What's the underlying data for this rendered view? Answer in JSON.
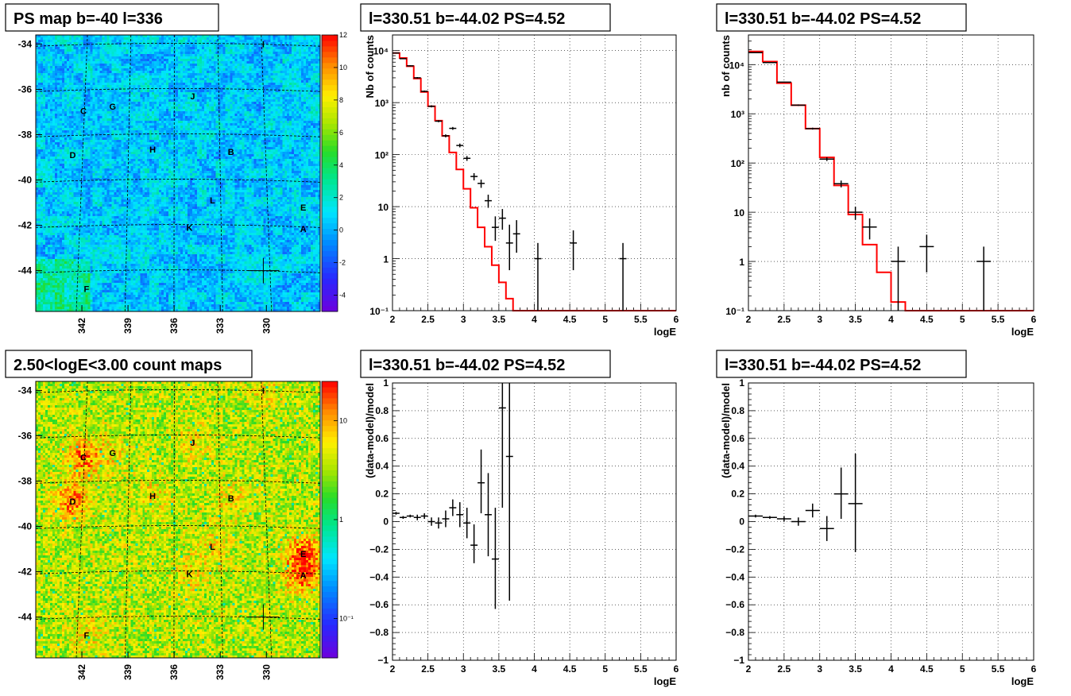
{
  "chart_data": [
    {
      "id": "ps_map",
      "type": "heatmap",
      "title": "PS map b=-40 l=336",
      "xticks": [
        "342",
        "339",
        "336",
        "333",
        "330"
      ],
      "yticks": [
        "-34",
        "-36",
        "-38",
        "-40",
        "-42",
        "-44"
      ],
      "xlim": [
        345,
        326.5
      ],
      "ylim": [
        -45.8,
        -33.6
      ],
      "palette_ticks": [
        "12",
        "10",
        "8",
        "6",
        "4",
        "2",
        "0",
        "-2",
        "-4"
      ],
      "zlim": [
        -5,
        12
      ],
      "sources": [
        {
          "name": "C",
          "l": 341.9,
          "b": -36.95
        },
        {
          "name": "G",
          "l": 340.0,
          "b": -36.75
        },
        {
          "name": "J",
          "l": 334.8,
          "b": -36.3
        },
        {
          "name": "D",
          "l": 342.6,
          "b": -38.9
        },
        {
          "name": "H",
          "l": 337.4,
          "b": -38.65
        },
        {
          "name": "B",
          "l": 332.3,
          "b": -38.75
        },
        {
          "name": "L",
          "l": 333.5,
          "b": -40.9
        },
        {
          "name": "E",
          "l": 327.6,
          "b": -41.2
        },
        {
          "name": "K",
          "l": 335.0,
          "b": -42.1
        },
        {
          "name": "A",
          "l": 327.6,
          "b": -42.15
        },
        {
          "name": "F",
          "l": 341.7,
          "b": -44.8
        },
        {
          "name": "I",
          "l": 330.2,
          "b": -34.0
        }
      ],
      "marker": {
        "l": 330.2,
        "b": -44.0
      }
    },
    {
      "id": "count_map",
      "type": "heatmap",
      "title": "2.50<logE<3.00 count maps",
      "xticks": [
        "342",
        "339",
        "336",
        "333",
        "330"
      ],
      "yticks": [
        "-34",
        "-36",
        "-38",
        "-40",
        "-42",
        "-44"
      ],
      "xlim": [
        345,
        326.5
      ],
      "ylim": [
        -45.8,
        -33.6
      ],
      "palette_ticks": [
        "10",
        "1",
        "10⁻¹"
      ],
      "palette_tick_values": [
        10,
        1,
        0.1
      ],
      "zlim": [
        0.04,
        25
      ],
      "zscale": "log",
      "sources": [
        {
          "name": "C",
          "l": 341.9,
          "b": -36.95
        },
        {
          "name": "G",
          "l": 340.0,
          "b": -36.75
        },
        {
          "name": "J",
          "l": 334.8,
          "b": -36.3
        },
        {
          "name": "D",
          "l": 342.6,
          "b": -38.9
        },
        {
          "name": "H",
          "l": 337.4,
          "b": -38.65
        },
        {
          "name": "B",
          "l": 332.3,
          "b": -38.75
        },
        {
          "name": "L",
          "l": 333.5,
          "b": -40.9
        },
        {
          "name": "E",
          "l": 327.6,
          "b": -41.2
        },
        {
          "name": "K",
          "l": 335.0,
          "b": -42.1
        },
        {
          "name": "A",
          "l": 327.6,
          "b": -42.15
        },
        {
          "name": "F",
          "l": 341.7,
          "b": -44.8
        },
        {
          "name": "I",
          "l": 330.2,
          "b": -34.0
        }
      ],
      "marker": {
        "l": 330.2,
        "b": -44.0
      }
    },
    {
      "id": "spectrum_1",
      "type": "line",
      "title": "l=330.51 b=-44.02 PS=4.52",
      "xlabel": "logE",
      "ylabel": "Nb of counts",
      "xlim": [
        2,
        6
      ],
      "ylim": [
        0.1,
        20000
      ],
      "yscale": "log",
      "xticks": [
        "2",
        "2.5",
        "3",
        "3.5",
        "4",
        "4.5",
        "5",
        "5.5",
        "6"
      ],
      "yticks": [
        {
          "v": 0.1,
          "label": "10⁻¹"
        },
        {
          "v": 1,
          "label": "1"
        },
        {
          "v": 10,
          "label": "10"
        },
        {
          "v": 100,
          "label": "10²"
        },
        {
          "v": 1000,
          "label": "10³"
        },
        {
          "v": 10000,
          "label": "10⁴"
        }
      ],
      "model": {
        "edges": [
          2.0,
          2.1,
          2.2,
          2.3,
          2.4,
          2.5,
          2.6,
          2.7,
          2.8,
          2.9,
          3.0,
          3.1,
          3.2,
          3.3,
          3.4,
          3.5,
          3.6,
          3.7,
          3.8,
          3.9,
          4.0,
          4.1,
          4.2,
          6.0
        ],
        "values": [
          9000,
          7200,
          5000,
          2900,
          1600,
          850,
          450,
          230,
          110,
          52,
          22,
          9.5,
          4.0,
          1.7,
          0.75,
          0.35,
          0.17,
          0.09,
          0.045,
          0.02,
          0.009,
          0.004,
          0.002
        ]
      },
      "points": [
        {
          "x": 2.05,
          "y": 9000,
          "ylo": 8800,
          "yhi": 9200,
          "xerr": 0.05
        },
        {
          "x": 2.15,
          "y": 7000,
          "ylo": 6850,
          "yhi": 7150,
          "xerr": 0.05
        },
        {
          "x": 2.25,
          "y": 5100,
          "ylo": 4980,
          "yhi": 5220,
          "xerr": 0.05
        },
        {
          "x": 2.35,
          "y": 3000,
          "ylo": 2900,
          "yhi": 3100,
          "xerr": 0.05
        },
        {
          "x": 2.45,
          "y": 1650,
          "ylo": 1590,
          "yhi": 1710,
          "xerr": 0.05
        },
        {
          "x": 2.55,
          "y": 850,
          "ylo": 810,
          "yhi": 890,
          "xerr": 0.05
        },
        {
          "x": 2.65,
          "y": 440,
          "ylo": 420,
          "yhi": 460,
          "xerr": 0.05
        },
        {
          "x": 2.75,
          "y": 230,
          "ylo": 215,
          "yhi": 245,
          "xerr": 0.05
        },
        {
          "x": 2.85,
          "y": 320,
          "ylo": 300,
          "yhi": 340,
          "xerr": 0.05
        },
        {
          "x": 2.95,
          "y": 150,
          "ylo": 138,
          "yhi": 163,
          "xerr": 0.05
        },
        {
          "x": 3.05,
          "y": 85,
          "ylo": 76,
          "yhi": 94,
          "xerr": 0.05
        },
        {
          "x": 3.15,
          "y": 38,
          "ylo": 32,
          "yhi": 44,
          "xerr": 0.05
        },
        {
          "x": 3.25,
          "y": 28,
          "ylo": 23,
          "yhi": 33,
          "xerr": 0.05
        },
        {
          "x": 3.35,
          "y": 13,
          "ylo": 9.5,
          "yhi": 17,
          "xerr": 0.05
        },
        {
          "x": 3.45,
          "y": 4,
          "ylo": 2.2,
          "yhi": 6.5,
          "xerr": 0.05
        },
        {
          "x": 3.55,
          "y": 6,
          "ylo": 3.6,
          "yhi": 9,
          "xerr": 0.05
        },
        {
          "x": 3.65,
          "y": 2,
          "ylo": 0.6,
          "yhi": 4.5,
          "xerr": 0.05
        },
        {
          "x": 3.75,
          "y": 3,
          "ylo": 1.3,
          "yhi": 5.5,
          "xerr": 0.05
        },
        {
          "x": 4.05,
          "y": 1,
          "ylo": 0.1,
          "yhi": 2.0,
          "xerr": 0.05
        },
        {
          "x": 4.55,
          "y": 2,
          "ylo": 0.6,
          "yhi": 3.5,
          "xerr": 0.05
        },
        {
          "x": 5.25,
          "y": 1,
          "ylo": 0.1,
          "yhi": 2.0,
          "xerr": 0.05
        }
      ]
    },
    {
      "id": "spectrum_2",
      "type": "line",
      "title": "l=330.51 b=-44.02 PS=4.52",
      "xlabel": "logE",
      "ylabel": "nb of counts",
      "xlim": [
        2,
        6
      ],
      "ylim": [
        0.1,
        40000
      ],
      "yscale": "log",
      "xticks": [
        "2",
        "2.5",
        "3",
        "3.5",
        "4",
        "4.5",
        "5",
        "5.5",
        "6"
      ],
      "yticks": [
        {
          "v": 0.1,
          "label": "10⁻¹"
        },
        {
          "v": 1,
          "label": "1"
        },
        {
          "v": 10,
          "label": "10"
        },
        {
          "v": 100,
          "label": "10²"
        },
        {
          "v": 1000,
          "label": "10³"
        },
        {
          "v": 10000,
          "label": "10⁴"
        }
      ],
      "model": {
        "edges": [
          2.0,
          2.2,
          2.4,
          2.6,
          2.8,
          3.0,
          3.2,
          3.4,
          3.6,
          3.8,
          4.0,
          4.2,
          6.0
        ],
        "values": [
          18500,
          11500,
          4200,
          1500,
          500,
          130,
          35,
          9,
          2.2,
          0.6,
          0.15,
          0.05
        ]
      },
      "points": [
        {
          "x": 2.1,
          "y": 17500,
          "ylo": 17200,
          "yhi": 17800,
          "xerr": 0.1
        },
        {
          "x": 2.3,
          "y": 11000,
          "ylo": 10800,
          "yhi": 11200,
          "xerr": 0.1
        },
        {
          "x": 2.5,
          "y": 4400,
          "ylo": 4300,
          "yhi": 4500,
          "xerr": 0.1
        },
        {
          "x": 2.7,
          "y": 1500,
          "ylo": 1450,
          "yhi": 1550,
          "xerr": 0.1
        },
        {
          "x": 2.9,
          "y": 500,
          "ylo": 478,
          "yhi": 522,
          "xerr": 0.1
        },
        {
          "x": 3.1,
          "y": 120,
          "ylo": 110,
          "yhi": 131,
          "xerr": 0.1
        },
        {
          "x": 3.3,
          "y": 38,
          "ylo": 32,
          "yhi": 44,
          "xerr": 0.1
        },
        {
          "x": 3.5,
          "y": 10,
          "ylo": 7,
          "yhi": 13,
          "xerr": 0.1
        },
        {
          "x": 3.7,
          "y": 5,
          "ylo": 2.8,
          "yhi": 7.5,
          "xerr": 0.1
        },
        {
          "x": 4.1,
          "y": 1,
          "ylo": 0.1,
          "yhi": 2.0,
          "xerr": 0.1
        },
        {
          "x": 4.5,
          "y": 2,
          "ylo": 0.6,
          "yhi": 3.5,
          "xerr": 0.1
        },
        {
          "x": 5.3,
          "y": 1,
          "ylo": 0.1,
          "yhi": 2.0,
          "xerr": 0.1
        }
      ]
    },
    {
      "id": "residual_1",
      "type": "scatter",
      "title": "l=330.51 b=-44.02 PS=4.52",
      "xlabel": "logE",
      "ylabel": "(data-model)/model",
      "xlim": [
        2,
        6
      ],
      "ylim": [
        -1,
        1
      ],
      "xticks": [
        "2",
        "2.5",
        "3",
        "3.5",
        "4",
        "4.5",
        "5",
        "5.5",
        "6"
      ],
      "yticks": [
        "-1",
        "-0.8",
        "-0.6",
        "-0.4",
        "-0.2",
        "0",
        "0.2",
        "0.4",
        "0.6",
        "0.8",
        "1"
      ],
      "points": [
        {
          "x": 2.05,
          "y": 0.06,
          "ylo": 0.05,
          "yhi": 0.07,
          "xerr": 0.05
        },
        {
          "x": 2.15,
          "y": 0.03,
          "ylo": 0.02,
          "yhi": 0.04,
          "xerr": 0.05
        },
        {
          "x": 2.25,
          "y": 0.04,
          "ylo": 0.03,
          "yhi": 0.05,
          "xerr": 0.05
        },
        {
          "x": 2.35,
          "y": 0.03,
          "ylo": 0.01,
          "yhi": 0.05,
          "xerr": 0.05
        },
        {
          "x": 2.45,
          "y": 0.04,
          "ylo": 0.02,
          "yhi": 0.06,
          "xerr": 0.05
        },
        {
          "x": 2.55,
          "y": 0.0,
          "ylo": -0.03,
          "yhi": 0.03,
          "xerr": 0.05
        },
        {
          "x": 2.65,
          "y": -0.01,
          "ylo": -0.05,
          "yhi": 0.03,
          "xerr": 0.05
        },
        {
          "x": 2.75,
          "y": 0.02,
          "ylo": -0.04,
          "yhi": 0.08,
          "xerr": 0.05
        },
        {
          "x": 2.85,
          "y": 0.1,
          "ylo": 0.04,
          "yhi": 0.16,
          "xerr": 0.05
        },
        {
          "x": 2.95,
          "y": 0.05,
          "ylo": -0.04,
          "yhi": 0.14,
          "xerr": 0.05
        },
        {
          "x": 3.05,
          "y": -0.01,
          "ylo": -0.12,
          "yhi": 0.1,
          "xerr": 0.05
        },
        {
          "x": 3.15,
          "y": -0.17,
          "ylo": -0.3,
          "yhi": -0.02,
          "xerr": 0.05
        },
        {
          "x": 3.25,
          "y": 0.28,
          "ylo": 0.06,
          "yhi": 0.52,
          "xerr": 0.05
        },
        {
          "x": 3.35,
          "y": 0.05,
          "ylo": -0.25,
          "yhi": 0.35,
          "xerr": 0.05
        },
        {
          "x": 3.45,
          "y": -0.27,
          "ylo": -0.63,
          "yhi": 0.1,
          "xerr": 0.05
        },
        {
          "x": 3.55,
          "y": 0.82,
          "ylo": 0.1,
          "yhi": 1.0,
          "xerr": 0.05
        },
        {
          "x": 3.65,
          "y": 0.47,
          "ylo": -0.57,
          "yhi": 1.0,
          "xerr": 0.05
        }
      ]
    },
    {
      "id": "residual_2",
      "type": "scatter",
      "title": "l=330.51 b=-44.02 PS=4.52",
      "xlabel": "logE",
      "ylabel": "(data-model)/model",
      "xlim": [
        2,
        6
      ],
      "ylim": [
        -1,
        1
      ],
      "xticks": [
        "2",
        "2.5",
        "3",
        "3.5",
        "4",
        "4.5",
        "5",
        "5.5",
        "6"
      ],
      "yticks": [
        "-1",
        "-0.8",
        "-0.6",
        "-0.4",
        "-0.2",
        "0",
        "0.2",
        "0.4",
        "0.6",
        "0.8",
        "1"
      ],
      "points": [
        {
          "x": 2.1,
          "y": 0.04,
          "ylo": 0.03,
          "yhi": 0.05,
          "xerr": 0.1
        },
        {
          "x": 2.3,
          "y": 0.03,
          "ylo": 0.02,
          "yhi": 0.04,
          "xerr": 0.1
        },
        {
          "x": 2.5,
          "y": 0.02,
          "ylo": 0.0,
          "yhi": 0.04,
          "xerr": 0.1
        },
        {
          "x": 2.7,
          "y": 0.0,
          "ylo": -0.03,
          "yhi": 0.03,
          "xerr": 0.1
        },
        {
          "x": 2.9,
          "y": 0.08,
          "ylo": 0.03,
          "yhi": 0.13,
          "xerr": 0.1
        },
        {
          "x": 3.1,
          "y": -0.05,
          "ylo": -0.14,
          "yhi": 0.04,
          "xerr": 0.1
        },
        {
          "x": 3.3,
          "y": 0.2,
          "ylo": 0.02,
          "yhi": 0.39,
          "xerr": 0.1
        },
        {
          "x": 3.5,
          "y": 0.13,
          "ylo": -0.22,
          "yhi": 0.49,
          "xerr": 0.1
        }
      ]
    }
  ]
}
